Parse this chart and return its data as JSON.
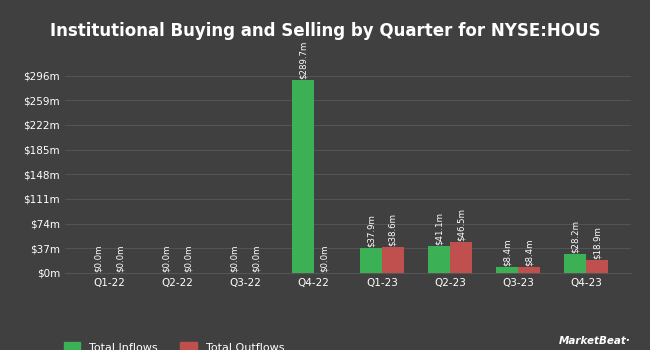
{
  "title": "Institutional Buying and Selling by Quarter for NYSE:HOUS",
  "quarters": [
    "Q1-22",
    "Q2-22",
    "Q3-22",
    "Q4-22",
    "Q1-23",
    "Q2-23",
    "Q3-23",
    "Q4-23"
  ],
  "inflows": [
    0.0,
    0.0,
    0.0,
    289.7,
    37.9,
    41.1,
    8.4,
    28.2
  ],
  "outflows": [
    0.0,
    0.0,
    0.0,
    0.0,
    38.6,
    46.5,
    8.4,
    18.9
  ],
  "inflow_labels": [
    "$0.0m",
    "$0.0m",
    "$0.0m",
    "$289.7m",
    "$37.9m",
    "$41.1m",
    "$8.4m",
    "$28.2m"
  ],
  "outflow_labels": [
    "$0.0m",
    "$0.0m",
    "$0.0m",
    "$0.0m",
    "$38.6m",
    "$46.5m",
    "$8.4m",
    "$18.9m"
  ],
  "inflow_color": "#3cb054",
  "outflow_color": "#c0504d",
  "bg_color": "#404040",
  "grid_color": "#555555",
  "text_color": "#ffffff",
  "ylabel_ticks": [
    "$0m",
    "$37m",
    "$74m",
    "$111m",
    "$148m",
    "$185m",
    "$222m",
    "$259m",
    "$296m"
  ],
  "ytick_vals": [
    0,
    37,
    74,
    111,
    148,
    185,
    222,
    259,
    296
  ],
  "ylim": [
    0,
    315
  ],
  "bar_width": 0.32,
  "legend_inflow": "Total Inflows",
  "legend_outflow": "Total Outflows",
  "title_fontsize": 12,
  "label_fontsize": 6.2,
  "tick_fontsize": 7.5,
  "legend_fontsize": 8
}
